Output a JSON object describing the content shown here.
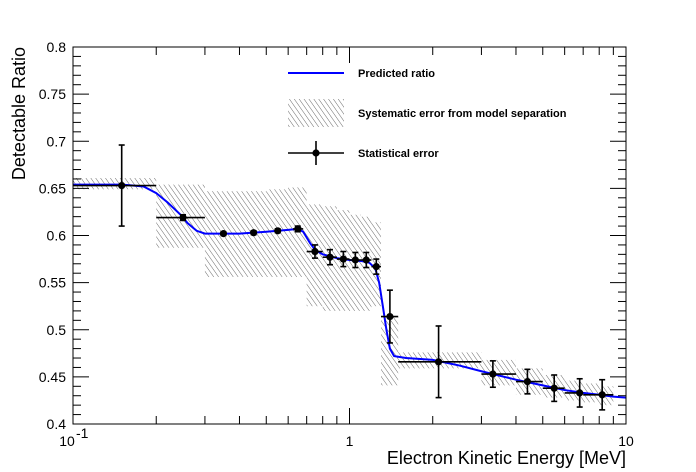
{
  "chart_data": {
    "type": "scatter",
    "xlabel": "Electron Kinetic Energy [MeV]",
    "ylabel": "Detectable Ratio",
    "xscale": "log",
    "xlim": [
      0.1,
      10
    ],
    "ylim": [
      0.4,
      0.8
    ],
    "x_tick_labels": [
      {
        "value": 0.1,
        "base": "10",
        "exp": "-1"
      },
      {
        "value": 1,
        "text": "1"
      },
      {
        "value": 10,
        "text": "10"
      }
    ],
    "y_ticks": [
      "0.4",
      "0.45",
      "0.5",
      "0.55",
      "0.6",
      "0.65",
      "0.7",
      "0.75",
      "0.8"
    ],
    "legend_position": "top-center",
    "legend": {
      "predicted": "Predicted ratio",
      "systematic": "Systematic error from model separation",
      "statistical": "Statistical error"
    },
    "colors": {
      "predicted": "#0000ff",
      "points": "#000000",
      "band": "#6a6a6a"
    },
    "predicted_ratio": [
      [
        0.1,
        0.654
      ],
      [
        0.15,
        0.654
      ],
      [
        0.18,
        0.652
      ],
      [
        0.2,
        0.645
      ],
      [
        0.22,
        0.635
      ],
      [
        0.245,
        0.622
      ],
      [
        0.26,
        0.613
      ],
      [
        0.28,
        0.605
      ],
      [
        0.3,
        0.602
      ],
      [
        0.4,
        0.602
      ],
      [
        0.5,
        0.604
      ],
      [
        0.6,
        0.606
      ],
      [
        0.65,
        0.607
      ],
      [
        0.68,
        0.604
      ],
      [
        0.72,
        0.592
      ],
      [
        0.75,
        0.585
      ],
      [
        0.8,
        0.58
      ],
      [
        0.9,
        0.576
      ],
      [
        1.0,
        0.574
      ],
      [
        1.1,
        0.573
      ],
      [
        1.18,
        0.571
      ],
      [
        1.24,
        0.565
      ],
      [
        1.28,
        0.55
      ],
      [
        1.32,
        0.525
      ],
      [
        1.36,
        0.5
      ],
      [
        1.4,
        0.48
      ],
      [
        1.45,
        0.472
      ],
      [
        1.6,
        0.47
      ],
      [
        2.0,
        0.468
      ],
      [
        2.5,
        0.462
      ],
      [
        3.0,
        0.456
      ],
      [
        4.0,
        0.447
      ],
      [
        5.0,
        0.441
      ],
      [
        6.0,
        0.436
      ],
      [
        7.0,
        0.433
      ],
      [
        8.0,
        0.431
      ],
      [
        9.0,
        0.429
      ],
      [
        10.0,
        0.428
      ]
    ],
    "systematic_band": [
      {
        "x0": 0.1,
        "x1": 0.2,
        "low": 0.649,
        "high": 0.661
      },
      {
        "x0": 0.2,
        "x1": 0.3,
        "low": 0.587,
        "high": 0.654
      },
      {
        "x0": 0.3,
        "x1": 0.4,
        "low": 0.556,
        "high": 0.647
      },
      {
        "x0": 0.4,
        "x1": 0.5,
        "low": 0.556,
        "high": 0.647
      },
      {
        "x0": 0.5,
        "x1": 0.6,
        "low": 0.556,
        "high": 0.649
      },
      {
        "x0": 0.6,
        "x1": 0.7,
        "low": 0.556,
        "high": 0.651
      },
      {
        "x0": 0.7,
        "x1": 0.8,
        "low": 0.525,
        "high": 0.633
      },
      {
        "x0": 0.8,
        "x1": 0.9,
        "low": 0.52,
        "high": 0.631
      },
      {
        "x0": 0.9,
        "x1": 1.0,
        "low": 0.52,
        "high": 0.627
      },
      {
        "x0": 1.0,
        "x1": 1.1,
        "low": 0.52,
        "high": 0.622
      },
      {
        "x0": 1.1,
        "x1": 1.2,
        "low": 0.52,
        "high": 0.62
      },
      {
        "x0": 1.2,
        "x1": 1.3,
        "low": 0.525,
        "high": 0.614
      },
      {
        "x0": 1.3,
        "x1": 1.5,
        "low": 0.441,
        "high": 0.514
      },
      {
        "x0": 1.5,
        "x1": 3.0,
        "low": 0.459,
        "high": 0.476
      },
      {
        "x0": 3.0,
        "x1": 4.0,
        "low": 0.441,
        "high": 0.468
      },
      {
        "x0": 4.0,
        "x1": 5.0,
        "low": 0.431,
        "high": 0.459
      },
      {
        "x0": 5.0,
        "x1": 6.0,
        "low": 0.428,
        "high": 0.452
      },
      {
        "x0": 6.0,
        "x1": 7.0,
        "low": 0.425,
        "high": 0.446
      },
      {
        "x0": 7.0,
        "x1": 8.0,
        "low": 0.423,
        "high": 0.443
      },
      {
        "x0": 8.0,
        "x1": 9.0,
        "low": 0.42,
        "high": 0.44
      }
    ],
    "points": [
      {
        "x": 0.15,
        "xlo": 0.1,
        "xhi": 0.2,
        "y": 0.653,
        "err": 0.043
      },
      {
        "x": 0.25,
        "xlo": 0.2,
        "xhi": 0.3,
        "y": 0.619,
        "err": 0.003
      },
      {
        "x": 0.35,
        "xlo": 0.35,
        "xhi": 0.35,
        "y": 0.602,
        "err": 0.002
      },
      {
        "x": 0.45,
        "xlo": 0.45,
        "xhi": 0.45,
        "y": 0.603,
        "err": 0.002
      },
      {
        "x": 0.55,
        "xlo": 0.55,
        "xhi": 0.55,
        "y": 0.605,
        "err": 0.002
      },
      {
        "x": 0.65,
        "xlo": 0.625,
        "xhi": 0.68,
        "y": 0.607,
        "err": 0.003
      },
      {
        "x": 0.75,
        "xlo": 0.7,
        "xhi": 0.8,
        "y": 0.583,
        "err": 0.007
      },
      {
        "x": 0.85,
        "xlo": 0.8,
        "xhi": 0.9,
        "y": 0.577,
        "err": 0.008
      },
      {
        "x": 0.95,
        "xlo": 0.9,
        "xhi": 1.0,
        "y": 0.575,
        "err": 0.008
      },
      {
        "x": 1.05,
        "xlo": 1.0,
        "xhi": 1.1,
        "y": 0.574,
        "err": 0.008
      },
      {
        "x": 1.15,
        "xlo": 1.1,
        "xhi": 1.2,
        "y": 0.574,
        "err": 0.008
      },
      {
        "x": 1.25,
        "xlo": 1.2,
        "xhi": 1.3,
        "y": 0.567,
        "err": 0.008
      },
      {
        "x": 1.4,
        "xlo": 1.3,
        "xhi": 1.5,
        "y": 0.514,
        "err": 0.028
      },
      {
        "x": 2.1,
        "xlo": 1.5,
        "xhi": 3.0,
        "y": 0.466,
        "err": 0.038
      },
      {
        "x": 3.3,
        "xlo": 3.0,
        "xhi": 4.0,
        "y": 0.453,
        "err": 0.014
      },
      {
        "x": 4.4,
        "xlo": 4.0,
        "xhi": 5.0,
        "y": 0.445,
        "err": 0.013
      },
      {
        "x": 5.5,
        "xlo": 5.0,
        "xhi": 6.0,
        "y": 0.438,
        "err": 0.014
      },
      {
        "x": 6.8,
        "xlo": 6.0,
        "xhi": 7.0,
        "y": 0.433,
        "err": 0.015
      },
      {
        "x": 8.2,
        "xlo": 7.0,
        "xhi": 9.0,
        "y": 0.431,
        "err": 0.016
      }
    ]
  }
}
